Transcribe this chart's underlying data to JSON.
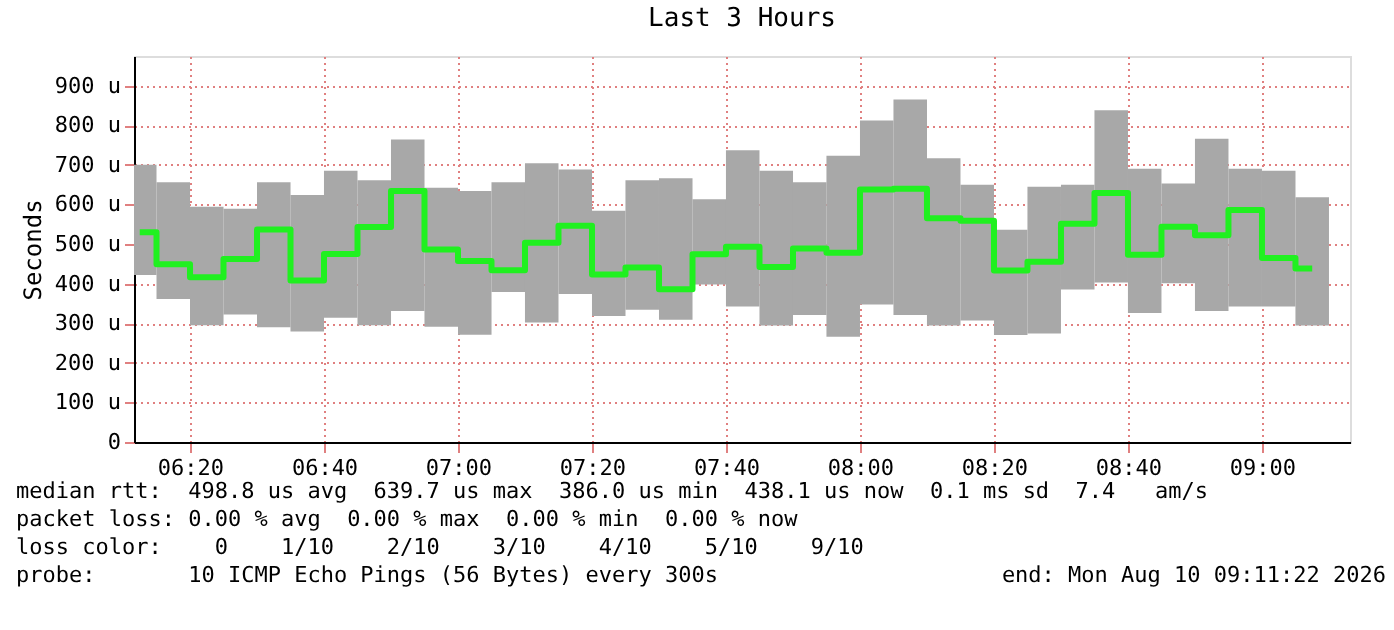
{
  "chart_data": {
    "type": "bar",
    "title": "Last 3 Hours",
    "ylabel": "Seconds",
    "x": [
      6.2083,
      6.2917,
      6.375,
      6.4583,
      6.5417,
      6.625,
      6.7083,
      6.7917,
      6.875,
      6.9583,
      7.0417,
      7.125,
      7.2083,
      7.2917,
      7.375,
      7.4583,
      7.5417,
      7.625,
      7.7083,
      7.7917,
      7.875,
      7.9583,
      8.0417,
      8.125,
      8.2083,
      8.2917,
      8.375,
      8.4583,
      8.5417,
      8.625,
      8.7083,
      8.7917,
      8.875,
      8.9583,
      9.0417,
      9.125
    ],
    "series": [
      {
        "type": "bar",
        "color": "#a8a8a8",
        "base": [
          422,
          361,
          295,
          322,
          290,
          279,
          314,
          295,
          331,
          291,
          271,
          379,
          302,
          374,
          318,
          334,
          309,
          398,
          342,
          294,
          321,
          266,
          347,
          321,
          294,
          307,
          270,
          274,
          385,
          403,
          326,
          401,
          331,
          342,
          342,
          294
        ],
        "values": [
          278,
          295,
          299,
          267,
          366,
          345,
          371,
          366,
          433,
          351,
          363,
          277,
          402,
          314,
          266,
          327,
          357,
          215,
          395,
          391,
          335,
          457,
          465,
          544,
          423,
          343,
          266,
          371,
          265,
          435,
          364,
          252,
          435,
          348,
          343,
          324
        ]
      },
      {
        "type": "step",
        "color": "#20f020",
        "values": [
          530,
          449,
          416,
          462,
          537,
          408,
          475,
          543,
          634,
          486,
          457,
          434,
          503,
          546,
          423,
          441,
          386,
          474,
          493,
          442,
          489,
          478,
          638,
          640,
          565,
          559,
          433,
          455,
          551,
          629,
          473,
          544,
          522,
          586,
          465,
          438
        ]
      }
    ],
    "xlim": [
      6.194,
      9.219
    ],
    "xticks": [
      {
        "value": 6.3333,
        "label": "06:20"
      },
      {
        "value": 6.6667,
        "label": "06:40"
      },
      {
        "value": 7,
        "label": "07:00"
      },
      {
        "value": 7.3333,
        "label": "07:20"
      },
      {
        "value": 7.6667,
        "label": "07:40"
      },
      {
        "value": 8,
        "label": "08:00"
      },
      {
        "value": 8.3333,
        "label": "08:20"
      },
      {
        "value": 8.6667,
        "label": "08:40"
      },
      {
        "value": 9,
        "label": "09:00"
      }
    ],
    "ylim": [
      0,
      975
    ],
    "yticks": [
      0,
      {
        "value": 100,
        "label": "100 u"
      },
      {
        "value": 200,
        "label": "200 u"
      },
      {
        "value": 300,
        "label": "300 u"
      },
      {
        "value": 400,
        "label": "400 u"
      },
      {
        "value": 500,
        "label": "500 u"
      },
      {
        "value": 600,
        "label": "600 u"
      },
      {
        "value": 700,
        "label": "700 u"
      },
      {
        "value": 800,
        "label": "800 u"
      },
      {
        "value": 900,
        "label": "900 u"
      }
    ],
    "grid": true,
    "annotations": [
      "median rtt:  498.8 us avg  639.7 us max  386.0 us min  438.1 us now  0.1 ms sd  7.4   am/s",
      "packet loss: 0.00 % avg  0.00 % max  0.00 % min  0.00 % now",
      "loss color:    0    1/10    2/10    3/10    4/10    5/10    9/10",
      "probe:       10 ICMP Echo Pings (56 Bytes) every 300s",
      "end: Mon Aug 10 09:11:22 2026"
    ]
  }
}
